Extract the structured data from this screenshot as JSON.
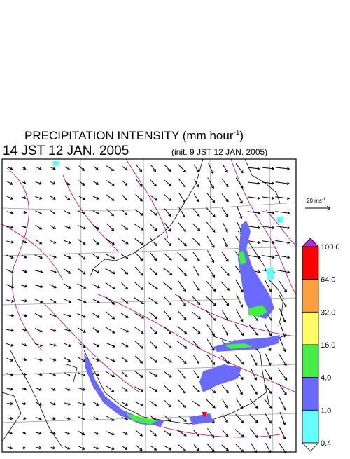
{
  "header": {
    "title": {
      "text": "PRECIPITATION INTENSITY (mm hour",
      "superscript": "-1",
      "suffix": ")"
    },
    "valid_time": "14 JST 12 JAN. 2005",
    "init_time": "(init. 9 JST 12 JAN. 2005)"
  },
  "wind_scale": {
    "text": "20 ms",
    "superscript": "-1"
  },
  "legend": {
    "levels": [
      "100.0",
      "64.0",
      "32.0",
      "16.0",
      "4.0",
      "1.0",
      "0.4"
    ],
    "colors": [
      "#ff0000",
      "#ffa040",
      "#ffff66",
      "#44ee44",
      "#6a6aff",
      "#66ffff"
    ],
    "over_color": "#b030e0",
    "under_color": "#ffffff"
  }
}
